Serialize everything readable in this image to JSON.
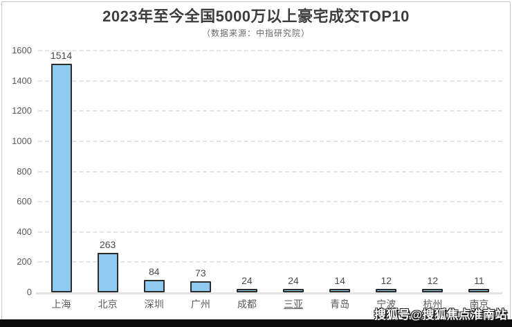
{
  "page": {
    "background": "#ffffff",
    "border_color": "#c9c9c9",
    "footer_bar_color": "#0d0d0d"
  },
  "header": {
    "title": "2023年至今全国5000万以上豪宅成交TOP10",
    "subtitle": "（数据来源：中指研究院）"
  },
  "watermark": {
    "text": "搜狐号@搜狐焦点淮南站"
  },
  "chart_data": {
    "type": "bar",
    "title": "2023年至今全国5000万以上豪宅成交TOP10",
    "subtitle": "（数据来源：中指研究院）",
    "categories": [
      "上海",
      "北京",
      "深圳",
      "广州",
      "成都",
      "三亚",
      "青岛",
      "宁波",
      "杭州",
      "南京"
    ],
    "values": [
      1514,
      263,
      84,
      73,
      24,
      24,
      14,
      12,
      12,
      11
    ],
    "underlined_categories": [
      "三亚"
    ],
    "xlabel": "",
    "ylabel": "",
    "ylim": [
      0,
      1600
    ],
    "yticks": [
      0,
      200,
      400,
      600,
      800,
      1000,
      1200,
      1400,
      1600
    ],
    "grid": "horizontal-dashed",
    "legend": "none",
    "bar_color": "#8fcbf0",
    "bar_border_color": "#2b2b2b",
    "gridline_color": "#e4e4e4",
    "axis_line_color": "#e3e3e3",
    "tick_label_color": "#595959",
    "value_label_color": "#4a4a4a"
  }
}
